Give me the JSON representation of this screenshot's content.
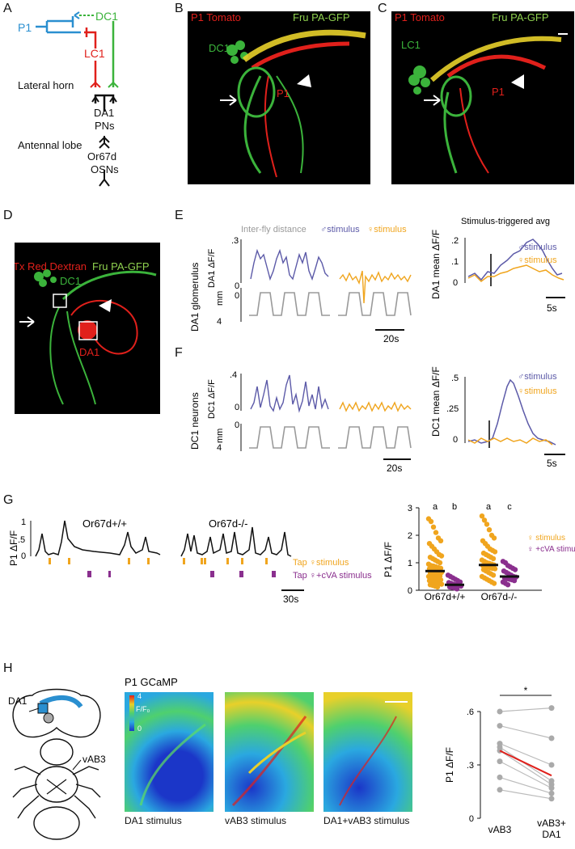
{
  "panels": {
    "A": "A",
    "B": "B",
    "C": "C",
    "D": "D",
    "E": "E",
    "F": "F",
    "G": "G",
    "H": "H"
  },
  "panelA": {
    "p1": "P1",
    "dc1": "DC1",
    "lc1": "LC1",
    "lateral_horn": "Lateral horn",
    "da1": "DA1",
    "pns": "PNs",
    "antennal_lobe": "Antennal lobe",
    "or67d": "Or67d",
    "osns": "OSNs"
  },
  "panelB": {
    "red": "P1 Tomato",
    "green": "Fru PA-GFP",
    "region": "DC1",
    "cell": "P1"
  },
  "panelC": {
    "red": "P1 Tomato",
    "green": "Fru PA-GFP",
    "region": "LC1",
    "cell": "P1"
  },
  "panelD": {
    "red": "Tx Red Dextran",
    "green": "Fru PA-GFP",
    "region": "DC1",
    "glom": "DA1"
  },
  "panelE": {
    "row_label": "DA1 glomerulus",
    "legend_dist": "Inter-fly distance",
    "legend_male": "♂stimulus",
    "legend_female": "♀stimulus",
    "ylabel": "DA1 ΔF/F",
    "ticks": [
      ".3",
      "0"
    ],
    "mm_ticks": [
      "0",
      "4"
    ],
    "mm": "mm",
    "scale": "20s",
    "avg_title": "Stimulus-triggered avg",
    "avg_ylabel": "DA1 mean ΔF/F",
    "avg_ticks": [
      ".2",
      ".1",
      "0"
    ],
    "avg_scale": "5s",
    "avg_male": "♂stimulus",
    "avg_female": "♀stimulus"
  },
  "panelF": {
    "row_label": "DC1 neurons",
    "ylabel": "DC1 ΔF/F",
    "ticks": [
      ".4",
      "0"
    ],
    "mm_ticks": [
      "0",
      "4"
    ],
    "mm": "mm",
    "scale": "20s",
    "avg_ylabel": "DC1 mean ΔF/F",
    "avg_ticks": [
      ".5",
      ".25",
      "0"
    ],
    "avg_scale": "5s",
    "avg_male": "♂stimulus",
    "avg_female": "♀stimulus"
  },
  "panelG": {
    "ylabel": "P1 ΔF/F",
    "ticks": [
      "1",
      ".5",
      "0"
    ],
    "wt": "Or67d+/+",
    "ko": "Or67d-/-",
    "tap_female": "Tap ♀stimulus",
    "tap_cva": "Tap ♀+cVA stimulus",
    "scale": "30s"
  },
  "panelH": {
    "da1": "DA1",
    "vab3": "vAB3",
    "title": "P1 GCaMP",
    "cbar_top": "4",
    "cbar_mid": "F/F₀",
    "cbar_bot": "0",
    "cap1": "DA1 stimulus",
    "cap2": "vAB3 stimulus",
    "cap3": "DA1+vAB3 stimulus"
  },
  "colors": {
    "male": "#5c5aa8",
    "female": "#f0a51e",
    "cva": "#8a2f8e",
    "dist": "#9a9a9a",
    "red": "#e0201b",
    "green": "#3bb33b",
    "blue": "#2a8fd0",
    "sig": "#e0201b"
  },
  "chart_data": [
    {
      "type": "scatter",
      "name": "G right",
      "ylabel": "P1 ΔF/F",
      "ylim": [
        0,
        3
      ],
      "yticks": [
        0,
        1,
        2,
        3
      ],
      "categories": [
        "Or67d+/+",
        "Or67d-/-"
      ],
      "legend": [
        "♀ stimulus",
        "♀ +cVA stimulus"
      ],
      "letters": [
        "a",
        "b",
        "a",
        "c"
      ],
      "series": [
        {
          "name": "♀ stimulus",
          "group": "Or67d+/+",
          "mean": 0.7,
          "values": [
            2.6,
            2.5,
            2.3,
            2.1,
            1.9,
            1.8,
            1.7,
            1.6,
            1.5,
            1.4,
            1.3,
            1.25,
            1.2,
            1.15,
            1.1,
            1.05,
            1.0,
            0.95,
            0.9,
            0.88,
            0.85,
            0.82,
            0.8,
            0.78,
            0.75,
            0.72,
            0.7,
            0.68,
            0.65,
            0.62,
            0.6,
            0.58,
            0.55,
            0.52,
            0.5,
            0.48,
            0.45,
            0.42,
            0.4,
            0.38,
            0.35,
            0.32,
            0.3,
            0.28,
            0.25,
            0.22,
            0.2,
            0.18,
            0.15,
            0.12
          ]
        },
        {
          "name": "♀ +cVA stimulus",
          "group": "Or67d+/+",
          "mean": 0.2,
          "values": [
            0.55,
            0.5,
            0.45,
            0.4,
            0.35,
            0.3,
            0.28,
            0.25,
            0.22,
            0.2,
            0.18,
            0.15,
            0.12,
            0.1,
            0.08,
            0.05
          ]
        },
        {
          "name": "♀ stimulus",
          "group": "Or67d-/-",
          "mean": 0.92,
          "values": [
            2.7,
            2.55,
            2.4,
            2.2,
            2.0,
            1.9,
            1.8,
            1.7,
            1.6,
            1.5,
            1.45,
            1.4,
            1.35,
            1.3,
            1.25,
            1.2,
            1.15,
            1.1,
            1.05,
            1.0,
            0.98,
            0.95,
            0.92,
            0.9,
            0.88,
            0.85,
            0.82,
            0.8,
            0.78,
            0.75,
            0.7,
            0.65,
            0.6,
            0.55,
            0.5,
            0.45,
            0.4,
            0.35,
            0.3,
            0.25
          ]
        },
        {
          "name": "♀ +cVA stimulus",
          "group": "Or67d-/-",
          "mean": 0.5,
          "values": [
            1.05,
            1.0,
            0.9,
            0.85,
            0.8,
            0.75,
            0.7,
            0.65,
            0.6,
            0.55,
            0.5,
            0.48,
            0.45,
            0.42,
            0.4,
            0.38,
            0.35,
            0.3,
            0.25,
            0.2
          ]
        }
      ]
    },
    {
      "type": "line",
      "name": "H right",
      "ylabel": "P1 ΔF/F",
      "ylim": [
        0,
        0.6
      ],
      "yticks": [
        0,
        0.3,
        0.6
      ],
      "categories": [
        "vAB3",
        "vAB3+ DA1"
      ],
      "significance": "*",
      "pairs": [
        [
          0.6,
          0.62
        ],
        [
          0.52,
          0.45
        ],
        [
          0.42,
          0.3
        ],
        [
          0.4,
          0.21
        ],
        [
          0.38,
          0.19
        ],
        [
          0.32,
          0.17
        ],
        [
          0.23,
          0.14
        ],
        [
          0.16,
          0.11
        ]
      ],
      "mean": [
        0.38,
        0.24
      ]
    }
  ]
}
